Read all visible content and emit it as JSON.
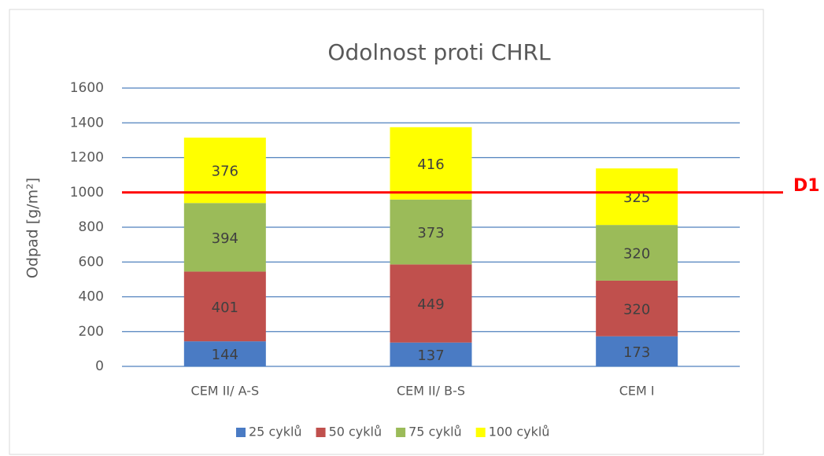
{
  "chart_data": {
    "type": "stacked_bar",
    "title": "Odolnost proti CHRL",
    "y_label": "Odpad [g/m²]",
    "categories": [
      "CEM II/ A-S",
      "CEM II/ B-S",
      "CEM I"
    ],
    "series": [
      {
        "name": "25 cyklů",
        "color": "#4a7bc4",
        "values": [
          144,
          137,
          173
        ]
      },
      {
        "name": "50 cyklů",
        "color": "#c0504d",
        "values": [
          401,
          449,
          320
        ]
      },
      {
        "name": "75 cyklů",
        "color": "#9bbb59",
        "values": [
          394,
          373,
          320
        ]
      },
      {
        "name": "100 cyklů",
        "color": "#ffff00",
        "values": [
          376,
          416,
          325
        ]
      }
    ],
    "ylim": [
      0,
      1600
    ],
    "yticks": [
      0,
      200,
      400,
      600,
      800,
      1000,
      1200,
      1400,
      1600
    ],
    "grid": true,
    "legend": "bottom",
    "reference_lines": [
      {
        "value": 1000,
        "label": "D1",
        "color": "#ff0000"
      }
    ]
  }
}
